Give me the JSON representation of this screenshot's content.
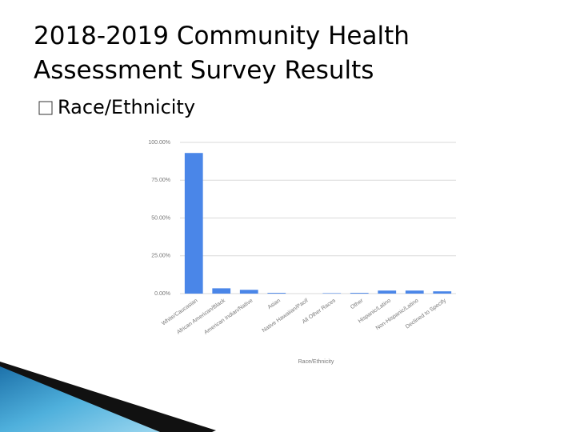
{
  "slide": {
    "title_lines": [
      "2018-2019 Community Health",
      "Assessment Survey Results"
    ],
    "bullet": "Race/Ethnicity"
  },
  "chart_data": {
    "type": "bar",
    "categories": [
      "White/Caucasian",
      "African American/Black",
      "American Indian/Native",
      "Asian",
      "Native Hawaiian/Pacif",
      "All Other Races",
      "Other",
      "Hispanic/Latino",
      "Non-Hispanic/Latino",
      "Declined to Specify"
    ],
    "values": [
      93,
      3.5,
      2.5,
      0.5,
      0,
      0.3,
      0.5,
      2,
      2,
      1.5
    ],
    "color": "#4a86e8",
    "x_label": "Race/Ethnicity",
    "ylim": [
      0,
      100
    ],
    "yticks": [
      {
        "value": 0,
        "label": "0.00%"
      },
      {
        "value": 25,
        "label": "25.00%"
      },
      {
        "value": 50,
        "label": "50.00%"
      },
      {
        "value": 75,
        "label": "75.00%"
      },
      {
        "value": 100,
        "label": "100.00%"
      }
    ],
    "grid": true
  }
}
